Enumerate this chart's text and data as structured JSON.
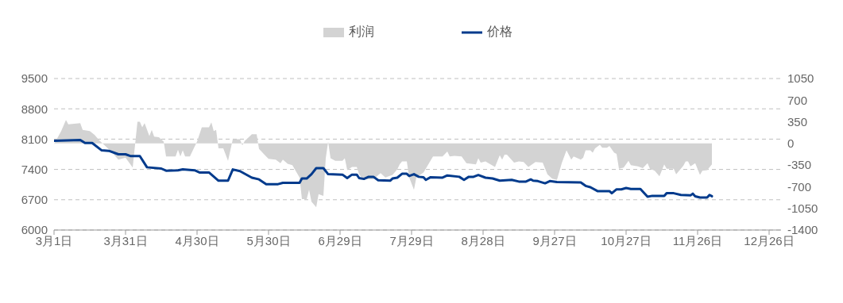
{
  "chart_data": {
    "type": "line",
    "legend": "top",
    "grid": "y",
    "marker": "none",
    "line_style": "solid",
    "xlim": [
      "--03-01",
      "--12-31"
    ],
    "xticks": [
      {
        "value": "--03-01",
        "label": "3月1日"
      },
      {
        "value": "--03-31",
        "label": "3月31日"
      },
      {
        "value": "--04-30",
        "label": "4月30日"
      },
      {
        "value": "--05-30",
        "label": "5月30日"
      },
      {
        "value": "--06-29",
        "label": "6月29日"
      },
      {
        "value": "--07-29",
        "label": "7月29日"
      },
      {
        "value": "--08-28",
        "label": "8月28日"
      },
      {
        "value": "--09-27",
        "label": "9月27日"
      },
      {
        "value": "--10-27",
        "label": "10月27日"
      },
      {
        "value": "--11-26",
        "label": "11月26日"
      },
      {
        "value": "--12-26",
        "label": "12月26日"
      }
    ],
    "ylim": [
      6000,
      9500
    ],
    "yticks": [
      6000,
      6700,
      7400,
      8100,
      8800,
      9500
    ],
    "y2lim": [
      -1400,
      1050
    ],
    "y2ticks": [
      -1400,
      -1050,
      -700,
      -350,
      0,
      350,
      700,
      1050
    ],
    "series": [
      {
        "name": "利润",
        "type": "area",
        "axis": "y2",
        "color": "#d3d3d3",
        "x": [
          "--03-01",
          "--03-04",
          "--03-06",
          "--03-07",
          "--03-12",
          "--03-13",
          "--03-16",
          "--03-18",
          "--03-20",
          "--03-25",
          "--03-28",
          "--03-31",
          "--04-03",
          "--04-05",
          "--04-06",
          "--04-07",
          "--04-08",
          "--04-10",
          "--04-11",
          "--04-12",
          "--04-14",
          "--04-16",
          "--04-17",
          "--04-21",
          "--04-22",
          "--04-23",
          "--04-24",
          "--04-25",
          "--04-27",
          "--04-30",
          "--05-02",
          "--05-05",
          "--05-06",
          "--05-07",
          "--05-08",
          "--05-09",
          "--05-11",
          "--05-13",
          "--05-15",
          "--05-18",
          "--05-19",
          "--05-20",
          "--05-23",
          "--05-25",
          "--05-26",
          "--05-29",
          "--05-30",
          "--06-02",
          "--06-04",
          "--06-05",
          "--06-07",
          "--06-09",
          "--06-12",
          "--06-13",
          "--06-15",
          "--06-16",
          "--06-17",
          "--06-19",
          "--06-20",
          "--06-22",
          "--06-23",
          "--06-24",
          "--06-25",
          "--06-27",
          "--06-30",
          "--07-01",
          "--07-02",
          "--07-04",
          "--07-06",
          "--07-07",
          "--07-08",
          "--07-10",
          "--07-13",
          "--07-16",
          "--07-18",
          "--07-21",
          "--07-23",
          "--07-24",
          "--07-25",
          "--07-27",
          "--07-28",
          "--07-30",
          "--07-31",
          "--08-03",
          "--08-07",
          "--08-11",
          "--08-13",
          "--08-14",
          "--08-16",
          "--08-19",
          "--08-21",
          "--08-25",
          "--08-26",
          "--08-27",
          "--08-29",
          "--09-02",
          "--09-04",
          "--09-05",
          "--09-06",
          "--09-07",
          "--09-10",
          "--09-12",
          "--09-14",
          "--09-16",
          "--09-19",
          "--09-22",
          "--09-24",
          "--09-26",
          "--09-28",
          "--09-30",
          "--10-02",
          "--10-04",
          "--10-05",
          "--10-08",
          "--10-09",
          "--10-10",
          "--10-12",
          "--10-13",
          "--10-14",
          "--10-16",
          "--10-17",
          "--10-19",
          "--10-20",
          "--10-22",
          "--10-23",
          "--10-24",
          "--10-26",
          "--10-28",
          "--10-29",
          "--11-01",
          "--11-03",
          "--11-05",
          "--11-06",
          "--11-08",
          "--11-10",
          "--11-12",
          "--11-13",
          "--11-16",
          "--11-17",
          "--11-20",
          "--11-21",
          "--11-22",
          "--11-23",
          "--11-25",
          "--11-27",
          "--11-28",
          "--11-30",
          "--12-02"
        ],
        "values": [
          -10,
          200,
          380,
          310,
          330,
          220,
          200,
          140,
          50,
          -130,
          -260,
          -230,
          -390,
          350,
          350,
          260,
          330,
          120,
          220,
          110,
          100,
          30,
          -210,
          -210,
          -100,
          -210,
          -110,
          -210,
          -210,
          30,
          260,
          260,
          340,
          200,
          220,
          -80,
          -80,
          -280,
          70,
          70,
          -30,
          40,
          150,
          150,
          -90,
          -210,
          -250,
          -260,
          -320,
          -260,
          -330,
          -350,
          -550,
          -900,
          -900,
          -750,
          -940,
          -1030,
          -820,
          -850,
          -240,
          30,
          -240,
          -280,
          -280,
          -240,
          -430,
          -380,
          -380,
          -500,
          -550,
          -580,
          -580,
          -480,
          -550,
          -510,
          -420,
          -340,
          -290,
          -290,
          -550,
          -750,
          -550,
          -470,
          -210,
          -210,
          -130,
          -210,
          -200,
          -210,
          -320,
          -340,
          -240,
          -310,
          -290,
          -380,
          -190,
          -260,
          -180,
          -180,
          -310,
          -290,
          -300,
          -380,
          -300,
          -310,
          -500,
          -570,
          -590,
          -320,
          -110,
          -260,
          -210,
          -260,
          -230,
          -110,
          -110,
          -150,
          -80,
          -20,
          -70,
          -70,
          -40,
          -150,
          -170,
          -410,
          -390,
          -280,
          -350,
          -370,
          -400,
          -320,
          -410,
          -440,
          -530,
          -340,
          -410,
          -410,
          -500,
          -360,
          -290,
          -290,
          -370,
          -320,
          -510,
          -440,
          -430,
          -340
        ]
      },
      {
        "name": "价格",
        "color": "#003a8c",
        "x": [
          "--03-01",
          "--03-12",
          "--03-14",
          "--03-17",
          "--03-21",
          "--03-24",
          "--03-28",
          "--03-31",
          "--04-02",
          "--04-06",
          "--04-09",
          "--04-15",
          "--04-17",
          "--04-22",
          "--04-24",
          "--04-29",
          "--05-01",
          "--05-05",
          "--05-09",
          "--05-13",
          "--05-15",
          "--05-18",
          "--05-23",
          "--05-26",
          "--05-29",
          "--06-03",
          "--06-05",
          "--06-12",
          "--06-13",
          "--06-15",
          "--06-17",
          "--06-19",
          "--06-22",
          "--06-24",
          "--06-30",
          "--07-02",
          "--07-04",
          "--07-06",
          "--07-07",
          "--07-09",
          "--07-11",
          "--07-13",
          "--07-15",
          "--07-20",
          "--07-21",
          "--07-23",
          "--07-25",
          "--07-27",
          "--07-28",
          "--07-30",
          "--08-01",
          "--08-03",
          "--08-04",
          "--08-06",
          "--08-11",
          "--08-13",
          "--08-18",
          "--08-20",
          "--08-22",
          "--08-24",
          "--08-26",
          "--08-29",
          "--09-01",
          "--09-04",
          "--09-09",
          "--09-12",
          "--09-15",
          "--09-17",
          "--09-18",
          "--09-20",
          "--09-23",
          "--09-25",
          "--09-28",
          "--10-08",
          "--10-10",
          "--10-12",
          "--10-15",
          "--10-20",
          "--10-21",
          "--10-23",
          "--10-25",
          "--10-27",
          "--10-29",
          "--11-02",
          "--11-05",
          "--11-07",
          "--11-12",
          "--11-13",
          "--11-16",
          "--11-19",
          "--11-23",
          "--11-24",
          "--11-25",
          "--11-27",
          "--11-30",
          "--12-01",
          "--12-02"
        ],
        "values": [
          8060,
          8080,
          8010,
          8010,
          7840,
          7830,
          7750,
          7750,
          7710,
          7710,
          7450,
          7420,
          7370,
          7380,
          7400,
          7380,
          7330,
          7330,
          7140,
          7140,
          7400,
          7360,
          7210,
          7170,
          7060,
          7060,
          7090,
          7090,
          7190,
          7190,
          7290,
          7430,
          7430,
          7290,
          7280,
          7200,
          7280,
          7280,
          7200,
          7180,
          7230,
          7230,
          7150,
          7140,
          7190,
          7210,
          7300,
          7300,
          7250,
          7290,
          7230,
          7220,
          7160,
          7220,
          7210,
          7260,
          7230,
          7160,
          7230,
          7230,
          7270,
          7210,
          7190,
          7140,
          7160,
          7120,
          7120,
          7170,
          7140,
          7130,
          7080,
          7130,
          7110,
          7100,
          7020,
          6990,
          6900,
          6900,
          6850,
          6940,
          6940,
          6970,
          6950,
          6950,
          6770,
          6790,
          6790,
          6850,
          6850,
          6810,
          6800,
          6840,
          6780,
          6750,
          6750,
          6810,
          6780
        ]
      }
    ]
  }
}
